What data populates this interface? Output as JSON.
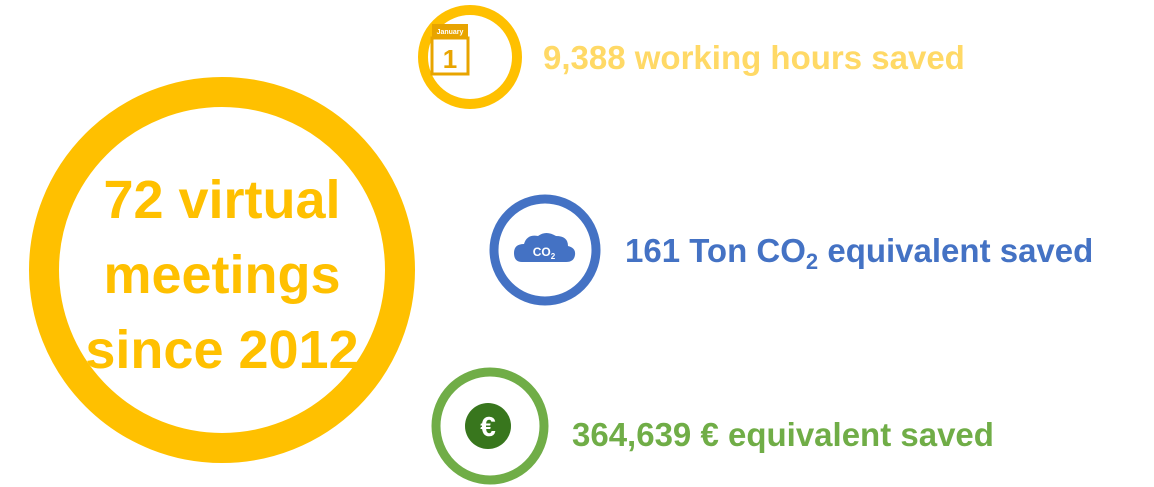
{
  "main": {
    "lines": [
      "72 virtual",
      "meetings",
      "since 2012"
    ]
  },
  "stats": [
    {
      "text": "9,388 working hours saved",
      "icon_month": "January",
      "icon_day": "1"
    },
    {
      "text_before": "161 Ton CO",
      "subscript": "2",
      "text_after": " equivalent saved",
      "icon_label": "CO",
      "icon_subscript": "2"
    },
    {
      "text": "364,639 € equivalent saved",
      "icon_label": "€"
    }
  ]
}
